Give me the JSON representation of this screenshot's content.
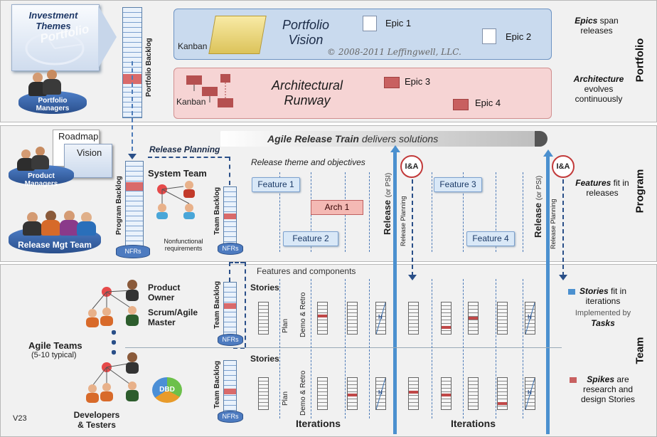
{
  "portfolio": {
    "band_label": "Portfolio",
    "investment_themes": "Investment Themes",
    "investment_watermark": "Portfolio",
    "portfolio_managers": "Portfolio Managers",
    "portfolio_backlog": "Portfolio Backlog",
    "kanban_vision": "Kanban",
    "portfolio_vision": "Portfolio Vision",
    "epics": [
      "Epic 1",
      "Epic 2",
      "Epic 3",
      "Epic 4"
    ],
    "copyright": "© 2008-2011 Leffingwell, LLC.",
    "kanban_runway": "Kanban",
    "architectural_runway": "Architectural Runway",
    "epics_note_em": "Epics",
    "epics_note_rest": "span releases",
    "arch_note_em": "Architecture",
    "arch_note_rest": "evolves continuously"
  },
  "program": {
    "band_label": "Program",
    "roadmap": "Roadmap",
    "vision": "Vision",
    "product_managers": "Product Managers",
    "release_mgt_team": "Release Mgt Team",
    "program_backlog": "Program Backlog",
    "nfrs": "NFRs",
    "release_planning": "Release Planning",
    "system_team": "System Team",
    "nonfunctional": "Nonfunctional requirements",
    "team_backlog": "Team Backlog",
    "art_em": "Agile Release Train",
    "art_rest": "delivers solutions",
    "release_theme": "Release theme and objectives",
    "features": [
      "Feature 1",
      "Feature 2",
      "Feature 3",
      "Feature 4"
    ],
    "arch1": "Arch 1",
    "release": "Release",
    "or_psi": "(or PSI)",
    "release_planning_v": "Release Planning",
    "ia": "I&A",
    "features_note_em": "Features",
    "features_note_rest": "fit in releases"
  },
  "team": {
    "band_label": "Team",
    "features_components": "Features and components",
    "product_owner": "Product Owner",
    "scrum_master": "Scrum/Agile Master",
    "agile_teams": "Agile Teams",
    "agile_teams_sub": "(5-10 typical)",
    "developers_testers": "Developers & Testers",
    "dbd": "DBD",
    "stories": "Stories",
    "plan": "Plan",
    "demo_retro": "Demo & Retro",
    "h": "H",
    "iterations": "Iterations",
    "stories_note_em": "Stories",
    "stories_note_rest": "fit in iterations",
    "implemented_by": "Implemented by",
    "tasks": "Tasks",
    "spikes_em": "Spikes",
    "spikes_rest": "are research and design Stories",
    "version": "V23"
  },
  "colors": {
    "blue_accent": "#4d7bc0",
    "red_accent": "#c86060",
    "vision_band": "#c9daee",
    "runway_band": "#f6d4d4"
  }
}
